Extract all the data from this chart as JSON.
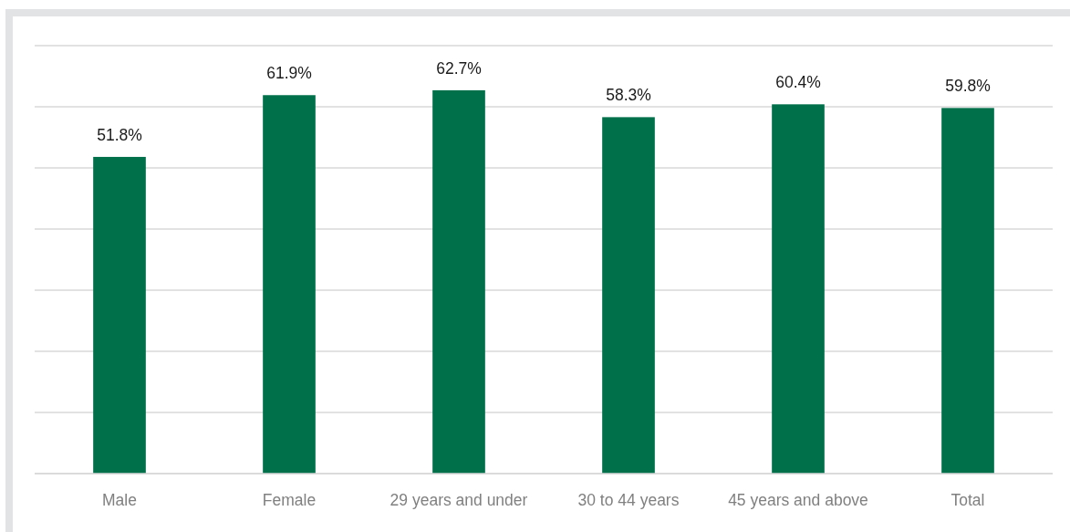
{
  "chart_data": {
    "type": "bar",
    "categories": [
      "Male",
      "Female",
      "29 years and under",
      "30 to 44 years",
      "45 years and above",
      "Total"
    ],
    "values": [
      51.8,
      61.9,
      62.7,
      58.3,
      60.4,
      59.8
    ],
    "value_labels": [
      "51.8%",
      "61.9%",
      "62.7%",
      "58.3%",
      "60.4%",
      "59.8%"
    ],
    "color": "#00704a",
    "ylim": [
      0,
      70
    ],
    "yticks": [
      {
        "value": 0,
        "label": null
      },
      {
        "value": 10,
        "label": null
      },
      {
        "value": 20,
        "label": null
      },
      {
        "value": 30,
        "label": null
      },
      {
        "value": 40,
        "label": null
      },
      {
        "value": 50,
        "label": null
      },
      {
        "value": 60,
        "label": null
      },
      {
        "value": 70,
        "label": null
      }
    ],
    "grid": "y",
    "tick_labels": "x"
  }
}
